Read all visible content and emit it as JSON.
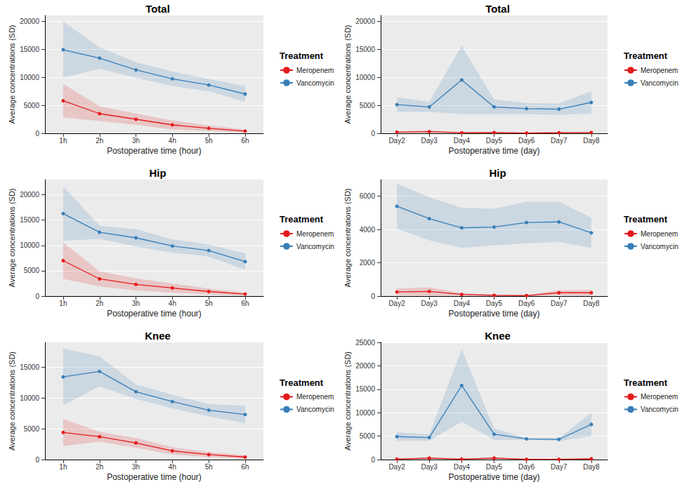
{
  "chart_data": [
    {
      "type": "line",
      "title": "Total",
      "x_label": "Postoperative time (hour)",
      "y_label": "Average concentrations (SD)",
      "legend_title": "Treatment",
      "legend": "right",
      "grid": true,
      "categories": [
        "1h",
        "2h",
        "3h",
        "4h",
        "5h",
        "6h"
      ],
      "ylim": [
        0,
        21000
      ],
      "yticks": [
        0,
        5000,
        10000,
        15000,
        20000
      ],
      "series": [
        {
          "name": "Meropenem",
          "color": "#E41A1C",
          "values": [
            5800,
            3500,
            2500,
            1500,
            900,
            400
          ],
          "sd": [
            3000,
            1300,
            1000,
            800,
            500,
            300
          ]
        },
        {
          "name": "Vancomycin",
          "color": "#377EB8",
          "values": [
            14900,
            13400,
            11300,
            9700,
            8600,
            7000
          ],
          "sd": [
            5000,
            1900,
            1400,
            1300,
            1100,
            1400
          ]
        }
      ]
    },
    {
      "type": "line",
      "title": "Total",
      "x_label": "Postoperative time (day)",
      "y_label": "Average concentrations (SD)",
      "legend_title": "Treatment",
      "legend": "right",
      "grid": true,
      "categories": [
        "Day2",
        "Day3",
        "Day4",
        "Day5",
        "Day6",
        "Day7",
        "Day8"
      ],
      "ylim": [
        0,
        21000
      ],
      "yticks": [
        0,
        5000,
        10000,
        15000,
        20000
      ],
      "series": [
        {
          "name": "Meropenem",
          "color": "#E41A1C",
          "values": [
            200,
            300,
            100,
            150,
            50,
            100,
            150
          ],
          "sd": [
            150,
            200,
            80,
            100,
            50,
            80,
            100
          ]
        },
        {
          "name": "Vancomycin",
          "color": "#377EB8",
          "values": [
            5100,
            4700,
            9500,
            4700,
            4400,
            4300,
            5500
          ],
          "sd": [
            1300,
            900,
            6100,
            1300,
            1000,
            1000,
            2000
          ]
        }
      ]
    },
    {
      "type": "line",
      "title": "Hip",
      "x_label": "Postoperative time (hour)",
      "y_label": "Average concentrations (SD)",
      "legend_title": "Treatment",
      "legend": "right",
      "grid": true,
      "categories": [
        "1h",
        "2h",
        "3h",
        "4h",
        "5h",
        "6h"
      ],
      "ylim": [
        0,
        23000
      ],
      "yticks": [
        0,
        5000,
        10000,
        15000,
        20000
      ],
      "series": [
        {
          "name": "Meropenem",
          "color": "#E41A1C",
          "values": [
            7000,
            3400,
            2300,
            1600,
            900,
            400
          ],
          "sd": [
            3600,
            1500,
            1200,
            900,
            600,
            300
          ]
        },
        {
          "name": "Vancomycin",
          "color": "#377EB8",
          "values": [
            16300,
            12600,
            11500,
            9900,
            9000,
            6800
          ],
          "sd": [
            5400,
            1300,
            1700,
            1300,
            1200,
            1600
          ]
        }
      ]
    },
    {
      "type": "line",
      "title": "Hip",
      "x_label": "Postoperative time (day)",
      "y_label": "Average concentrations (SD)",
      "legend_title": "Treatment",
      "legend": "right",
      "grid": true,
      "categories": [
        "Day2",
        "Day3",
        "Day4",
        "Day5",
        "Day6",
        "Day7",
        "Day8"
      ],
      "ylim": [
        0,
        7000
      ],
      "yticks": [
        0,
        2000,
        4000,
        6000
      ],
      "series": [
        {
          "name": "Meropenem",
          "color": "#E41A1C",
          "values": [
            250,
            280,
            100,
            50,
            30,
            200,
            200
          ],
          "sd": [
            200,
            250,
            80,
            50,
            30,
            150,
            180
          ]
        },
        {
          "name": "Vancomycin",
          "color": "#377EB8",
          "values": [
            5400,
            4650,
            4100,
            4150,
            4420,
            4460,
            3800
          ],
          "sd": [
            1350,
            1300,
            1200,
            1100,
            1250,
            1200,
            900
          ]
        }
      ]
    },
    {
      "type": "line",
      "title": "Knee",
      "x_label": "Postoperative time (hour)",
      "y_label": "Average concentrations (SD)",
      "legend_title": "Treatment",
      "legend": "right",
      "grid": true,
      "categories": [
        "1h",
        "2h",
        "3h",
        "4h",
        "5h",
        "6h"
      ],
      "ylim": [
        0,
        19000
      ],
      "yticks": [
        0,
        5000,
        10000,
        15000
      ],
      "series": [
        {
          "name": "Meropenem",
          "color": "#E41A1C",
          "values": [
            4400,
            3700,
            2700,
            1400,
            800,
            400
          ],
          "sd": [
            2200,
            800,
            800,
            600,
            400,
            300
          ]
        },
        {
          "name": "Vancomycin",
          "color": "#377EB8",
          "values": [
            13400,
            14300,
            11000,
            9400,
            8000,
            7300
          ],
          "sd": [
            4600,
            2400,
            1200,
            1100,
            1000,
            1400
          ]
        }
      ]
    },
    {
      "type": "line",
      "title": "Knee",
      "x_label": "Postoperative time (day)",
      "y_label": "Average concentrations (SD)",
      "legend_title": "Treatment",
      "legend": "right",
      "grid": true,
      "categories": [
        "Day2",
        "Day3",
        "Day4",
        "Day5",
        "Day6",
        "Day7",
        "Day8"
      ],
      "ylim": [
        0,
        25000
      ],
      "yticks": [
        0,
        5000,
        10000,
        15000,
        20000,
        25000
      ],
      "series": [
        {
          "name": "Meropenem",
          "color": "#E41A1C",
          "values": [
            100,
            300,
            100,
            300,
            50,
            50,
            150
          ],
          "sd": [
            100,
            150,
            100,
            150,
            50,
            50,
            100
          ]
        },
        {
          "name": "Vancomycin",
          "color": "#377EB8",
          "values": [
            4900,
            4700,
            15800,
            5400,
            4400,
            4300,
            7500
          ],
          "sd": [
            900,
            700,
            7700,
            1200,
            200,
            300,
            2500
          ]
        }
      ]
    }
  ]
}
